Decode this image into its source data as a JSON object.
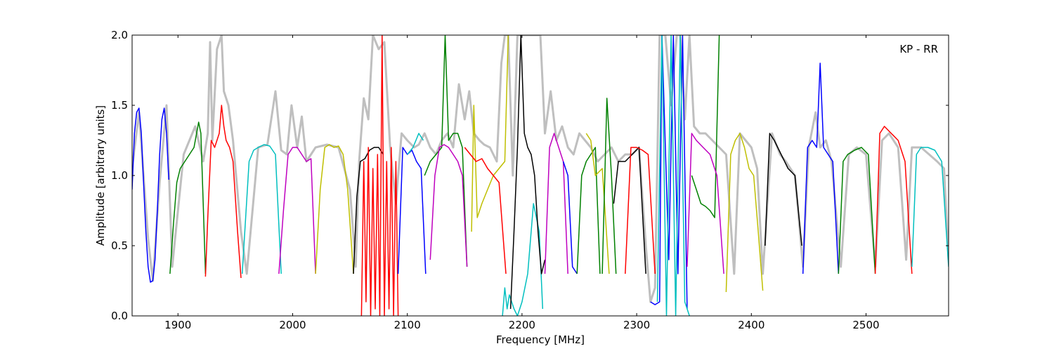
{
  "chart_data": {
    "type": "line",
    "title": "",
    "xlabel": "Frequency [MHz]",
    "ylabel": "Amplitude [arbitrary units]",
    "annotation": "KP - RR",
    "annotation_position": "top-right",
    "xlim": [
      1860,
      2572
    ],
    "ylim": [
      0.0,
      2.0
    ],
    "x_ticks": [
      1900,
      2000,
      2100,
      2200,
      2300,
      2400,
      2500
    ],
    "y_ticks": [
      0.0,
      0.5,
      1.0,
      1.5,
      2.0
    ],
    "x_tick_labels": [
      "1900",
      "2000",
      "2100",
      "2200",
      "2300",
      "2400",
      "2500"
    ],
    "y_tick_labels": [
      "0.0",
      "0.5",
      "1.0",
      "1.5",
      "2.0"
    ],
    "grid": false,
    "background_series": {
      "color": "#bfbfbf",
      "x": [
        1860,
        1866,
        1874,
        1878,
        1884,
        1890,
        1895,
        1905,
        1915,
        1922,
        1926,
        1928,
        1930,
        1934,
        1938,
        1940,
        1944,
        1948,
        1955,
        1960,
        1970,
        1978,
        1985,
        1990,
        1995,
        1999,
        2004,
        2008,
        2012,
        2020,
        2030,
        2040,
        2050,
        2055,
        2058,
        2062,
        2066,
        2070,
        2075,
        2080,
        2085,
        2090,
        2095,
        2100,
        2106,
        2110,
        2115,
        2120,
        2125,
        2130,
        2135,
        2140,
        2145,
        2150,
        2154,
        2158,
        2163,
        2167,
        2172,
        2178,
        2182,
        2185,
        2188,
        2192,
        2196,
        2200,
        2204,
        2208,
        2212,
        2216,
        2220,
        2225,
        2230,
        2235,
        2240,
        2245,
        2250,
        2255,
        2260,
        2266,
        2272,
        2278,
        2284,
        2290,
        2296,
        2302,
        2308,
        2312,
        2316,
        2320,
        2325,
        2330,
        2335,
        2338,
        2342,
        2346,
        2350,
        2355,
        2360,
        2366,
        2372,
        2378,
        2385,
        2390,
        2395,
        2400,
        2405,
        2410,
        2418,
        2425,
        2430,
        2438,
        2445,
        2450,
        2456,
        2460,
        2465,
        2470,
        2478,
        2485,
        2492,
        2500,
        2508,
        2514,
        2520,
        2528,
        2535,
        2540,
        2548,
        2555,
        2562,
        2568,
        2572
      ],
      "y": [
        1.05,
        1.45,
        0.55,
        0.25,
        0.95,
        1.5,
        0.35,
        1.15,
        1.35,
        1.1,
        1.3,
        1.95,
        1.25,
        1.9,
        2.0,
        1.6,
        1.5,
        1.25,
        0.6,
        0.3,
        1.2,
        1.22,
        1.6,
        1.18,
        1.15,
        1.5,
        1.2,
        1.42,
        1.1,
        1.2,
        1.22,
        1.2,
        0.9,
        0.35,
        1.1,
        1.55,
        1.4,
        2.0,
        1.9,
        1.95,
        1.2,
        0.8,
        1.3,
        1.25,
        1.2,
        1.22,
        1.3,
        1.2,
        1.15,
        1.25,
        1.3,
        1.2,
        1.65,
        1.4,
        1.6,
        1.3,
        1.25,
        1.22,
        1.2,
        1.1,
        1.8,
        2.0,
        2.0,
        1.0,
        2.0,
        2.0,
        2.0,
        2.0,
        2.0,
        2.0,
        1.3,
        1.6,
        1.25,
        1.35,
        1.2,
        1.15,
        1.3,
        1.25,
        1.2,
        1.1,
        1.15,
        1.2,
        1.1,
        1.15,
        1.15,
        1.2,
        0.5,
        0.1,
        0.2,
        2.0,
        2.0,
        1.5,
        2.0,
        2.0,
        1.4,
        2.0,
        1.35,
        1.3,
        1.3,
        1.25,
        1.2,
        1.15,
        0.3,
        1.3,
        1.25,
        1.2,
        1.05,
        0.3,
        1.3,
        1.15,
        1.1,
        1.0,
        0.35,
        1.2,
        1.45,
        1.2,
        1.25,
        1.1,
        0.35,
        1.15,
        1.2,
        1.15,
        0.35,
        1.25,
        1.3,
        1.2,
        0.4,
        1.2,
        1.2,
        1.15,
        1.1,
        1.05,
        0.4
      ]
    },
    "series": [
      {
        "color": "#0000ff",
        "x": [
          1860,
          1862,
          1864,
          1866,
          1868,
          1870,
          1872,
          1874,
          1876,
          1878,
          1880,
          1882,
          1884,
          1886,
          1888,
          1890,
          1892
        ],
        "y": [
          0.9,
          1.3,
          1.45,
          1.48,
          1.3,
          0.95,
          0.6,
          0.35,
          0.24,
          0.25,
          0.4,
          0.75,
          1.15,
          1.4,
          1.48,
          1.3,
          0.97
        ]
      },
      {
        "color": "#008000",
        "x": [
          1893,
          1896,
          1899,
          1902,
          1906,
          1910,
          1914,
          1918,
          1920,
          1922,
          1924
        ],
        "y": [
          0.3,
          0.65,
          0.95,
          1.05,
          1.1,
          1.15,
          1.2,
          1.38,
          1.3,
          0.8,
          0.3
        ]
      },
      {
        "color": "#ff0000",
        "x": [
          1924,
          1926,
          1929,
          1932,
          1936,
          1938,
          1940,
          1942,
          1945,
          1948,
          1952,
          1955
        ],
        "y": [
          0.28,
          0.7,
          1.25,
          1.2,
          1.3,
          1.5,
          1.35,
          1.25,
          1.2,
          1.1,
          0.6,
          0.27
        ]
      },
      {
        "color": "#00bfbf",
        "x": [
          1956,
          1959,
          1962,
          1966,
          1970,
          1975,
          1980,
          1985,
          1990
        ],
        "y": [
          0.3,
          0.7,
          1.1,
          1.18,
          1.2,
          1.22,
          1.21,
          1.15,
          0.3
        ]
      },
      {
        "color": "#bf00bf",
        "x": [
          1988,
          1992,
          1996,
          2000,
          2004,
          2008,
          2012,
          2016,
          2020
        ],
        "y": [
          0.3,
          0.75,
          1.15,
          1.2,
          1.2,
          1.15,
          1.1,
          1.12,
          0.3
        ]
      },
      {
        "color": "#bfbf00",
        "x": [
          2020,
          2024,
          2028,
          2032,
          2036,
          2040,
          2044,
          2048,
          2053
        ],
        "y": [
          0.3,
          0.9,
          1.2,
          1.22,
          1.2,
          1.21,
          1.15,
          0.9,
          0.3
        ]
      },
      {
        "color": "#000000",
        "x": [
          2053,
          2056,
          2059,
          2063,
          2067,
          2071,
          2075,
          2079
        ],
        "y": [
          0.3,
          0.85,
          1.1,
          1.12,
          1.18,
          1.2,
          1.2,
          1.15
        ]
      },
      {
        "color": "#ff0000",
        "x": [
          2060,
          2062,
          2064,
          2066,
          2068,
          2070,
          2072,
          2074,
          2076,
          2078,
          2080,
          2082,
          2084,
          2086,
          2088,
          2090,
          2092
        ],
        "y": [
          0.0,
          1.1,
          0.1,
          1.2,
          0.0,
          1.05,
          0.05,
          1.15,
          0.0,
          2.0,
          0.0,
          1.1,
          0.05,
          1.2,
          0.0,
          1.1,
          0.0
        ]
      },
      {
        "color": "#0000ff",
        "x": [
          2092,
          2096,
          2100,
          2104,
          2108,
          2112,
          2116
        ],
        "y": [
          0.3,
          1.2,
          1.15,
          1.18,
          1.1,
          1.05,
          0.3
        ]
      },
      {
        "color": "#00bfbf",
        "x": [
          2100,
          2105,
          2110,
          2114
        ],
        "y": [
          1.15,
          1.2,
          1.3,
          1.25
        ]
      },
      {
        "color": "#008000",
        "x": [
          2115,
          2120,
          2125,
          2130,
          2133,
          2136,
          2140,
          2144,
          2148,
          2152
        ],
        "y": [
          1.0,
          1.1,
          1.15,
          1.2,
          2.0,
          1.25,
          1.3,
          1.3,
          1.2,
          0.35
        ]
      },
      {
        "color": "#bf00bf",
        "x": [
          2120,
          2124,
          2128,
          2132,
          2136,
          2140,
          2144,
          2148,
          2152
        ],
        "y": [
          0.4,
          1.0,
          1.2,
          1.22,
          1.2,
          1.15,
          1.1,
          1.0,
          0.35
        ]
      },
      {
        "color": "#bfbf00",
        "x": [
          2156,
          2158,
          2161,
          2165,
          2170,
          2175,
          2180,
          2185,
          2188
        ],
        "y": [
          0.6,
          1.5,
          0.7,
          0.8,
          0.9,
          1.0,
          1.05,
          1.1,
          2.0
        ]
      },
      {
        "color": "#ff0000",
        "x": [
          2150,
          2155,
          2160,
          2165,
          2170,
          2175,
          2180,
          2186
        ],
        "y": [
          1.2,
          1.15,
          1.1,
          1.12,
          1.05,
          1.0,
          0.95,
          0.3
        ]
      },
      {
        "color": "#00bfbf",
        "x": [
          2183,
          2185,
          2187,
          2189,
          2191,
          2193,
          2196,
          2200,
          2205,
          2210,
          2215,
          2218
        ],
        "y": [
          0.0,
          0.2,
          0.05,
          0.15,
          0.1,
          0.05,
          0.0,
          0.1,
          0.3,
          0.8,
          0.6,
          0.05
        ]
      },
      {
        "color": "#000000",
        "x": [
          2190,
          2193,
          2196,
          2199,
          2202,
          2205,
          2208,
          2211,
          2214,
          2217,
          2220
        ],
        "y": [
          0.05,
          0.6,
          1.2,
          2.0,
          1.3,
          1.2,
          1.15,
          1.0,
          0.6,
          0.3,
          0.4
        ]
      },
      {
        "color": "#bf00bf",
        "x": [
          2220,
          2224,
          2228,
          2232,
          2236,
          2240
        ],
        "y": [
          0.3,
          1.2,
          1.3,
          1.2,
          1.1,
          0.3
        ]
      },
      {
        "color": "#0000ff",
        "x": [
          2236,
          2240,
          2244,
          2248
        ],
        "y": [
          1.1,
          1.0,
          0.35,
          0.3
        ]
      },
      {
        "color": "#008000",
        "x": [
          2248,
          2252,
          2256,
          2260,
          2264,
          2268
        ],
        "y": [
          0.3,
          1.0,
          1.1,
          1.15,
          1.2,
          0.3
        ]
      },
      {
        "color": "#bfbf00",
        "x": [
          2256,
          2260,
          2264,
          2270,
          2276
        ],
        "y": [
          1.3,
          1.25,
          1.0,
          1.05,
          0.3
        ]
      },
      {
        "color": "#008000",
        "x": [
          2270,
          2274,
          2278,
          2282
        ],
        "y": [
          0.3,
          1.55,
          1.0,
          0.3
        ]
      },
      {
        "color": "#000000",
        "x": [
          2280,
          2284,
          2290,
          2296,
          2302,
          2308
        ],
        "y": [
          0.8,
          1.1,
          1.1,
          1.15,
          1.2,
          0.3
        ]
      },
      {
        "color": "#ff0000",
        "x": [
          2290,
          2295,
          2300,
          2305,
          2310,
          2316
        ],
        "y": [
          0.3,
          1.2,
          1.2,
          1.18,
          1.15,
          0.3
        ]
      },
      {
        "color": "#0000ff",
        "x": [
          2312,
          2316,
          2320,
          2322,
          2325,
          2328,
          2332,
          2336,
          2340,
          2344
        ],
        "y": [
          0.1,
          0.08,
          0.1,
          2.0,
          1.2,
          0.4,
          2.0,
          0.3,
          2.0,
          0.05
        ]
      },
      {
        "color": "#00bfbf",
        "x": [
          2318,
          2322,
          2326,
          2330,
          2334,
          2338,
          2342,
          2346
        ],
        "y": [
          0.1,
          2.0,
          0.0,
          2.0,
          0.0,
          2.0,
          0.1,
          0.0
        ]
      },
      {
        "color": "#008000",
        "x": [
          2348,
          2352,
          2356,
          2360,
          2364,
          2368,
          2372
        ],
        "y": [
          1.0,
          0.9,
          0.8,
          0.78,
          0.75,
          0.7,
          2.0
        ]
      },
      {
        "color": "#bf00bf",
        "x": [
          2344,
          2348,
          2352,
          2358,
          2364,
          2370,
          2376
        ],
        "y": [
          0.35,
          1.3,
          1.25,
          1.2,
          1.15,
          1.0,
          0.3
        ]
      },
      {
        "color": "#bfbf00",
        "x": [
          2378,
          2382,
          2386,
          2390,
          2394,
          2398,
          2402,
          2406,
          2410
        ],
        "y": [
          0.17,
          1.15,
          1.25,
          1.3,
          1.2,
          1.05,
          1.0,
          0.6,
          0.18
        ]
      },
      {
        "color": "#000000",
        "x": [
          2412,
          2416,
          2420,
          2426,
          2432,
          2438,
          2444
        ],
        "y": [
          0.5,
          1.3,
          1.25,
          1.15,
          1.05,
          1.0,
          0.5
        ]
      },
      {
        "color": "#0000ff",
        "x": [
          2445,
          2449,
          2453,
          2457,
          2460,
          2463,
          2467,
          2471,
          2476
        ],
        "y": [
          0.3,
          1.2,
          1.25,
          1.2,
          1.8,
          1.2,
          1.15,
          1.1,
          0.3
        ]
      },
      {
        "color": "#008000",
        "x": [
          2476,
          2480,
          2484,
          2490,
          2496,
          2502,
          2508
        ],
        "y": [
          0.3,
          1.1,
          1.15,
          1.18,
          1.2,
          1.15,
          0.3
        ]
      },
      {
        "color": "#ff0000",
        "x": [
          2508,
          2512,
          2516,
          2522,
          2528,
          2534,
          2540
        ],
        "y": [
          0.3,
          1.3,
          1.35,
          1.3,
          1.25,
          1.1,
          0.3
        ]
      },
      {
        "color": "#00bfbf",
        "x": [
          2540,
          2544,
          2548,
          2554,
          2560,
          2566,
          2572
        ],
        "y": [
          0.35,
          1.15,
          1.2,
          1.2,
          1.18,
          1.1,
          0.35
        ]
      }
    ]
  }
}
